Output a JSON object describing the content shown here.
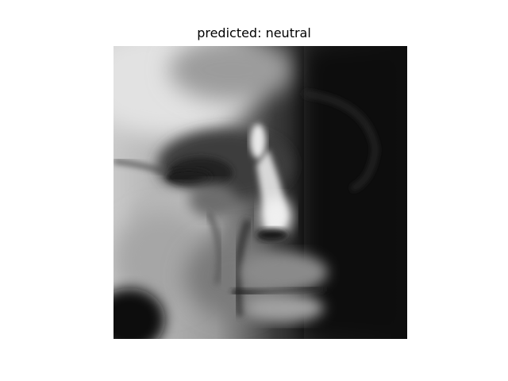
{
  "title": "predicted: neutral",
  "image": {
    "description_icon": "grayscale-face-photo",
    "colormap": "gray"
  }
}
